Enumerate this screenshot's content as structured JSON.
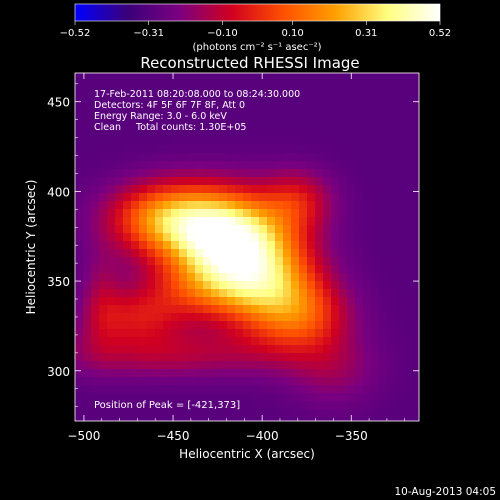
{
  "chart_data": {
    "type": "heatmap",
    "title": "Reconstructed RHESSI Image",
    "xlabel": "Heliocentric X (arcsec)",
    "ylabel": "Heliocentric Y (arcsec)",
    "xlim": [
      -505,
      -312
    ],
    "ylim": [
      272,
      466
    ],
    "x_ticks": [
      -500,
      -450,
      -400,
      -350
    ],
    "x_tick_labels": [
      "−500",
      "−450",
      "−400",
      "−350"
    ],
    "y_ticks": [
      300,
      350,
      400,
      450
    ],
    "y_tick_labels": [
      "300",
      "350",
      "400",
      "450"
    ],
    "colorbar": {
      "range": [
        -0.52,
        0.52
      ],
      "ticks": [
        -0.52,
        -0.31,
        -0.1,
        0.1,
        0.31,
        0.52
      ],
      "tick_labels": [
        "−0.52",
        "−0.31",
        "−0.10",
        "0.10",
        "0.31",
        "0.52"
      ],
      "units_label": "(photons cm⁻² s⁻¹ asec⁻²)",
      "stops": [
        "#0000ff",
        "#3a007a",
        "#7a0080",
        "#d00020",
        "#ff5000",
        "#ffa000",
        "#ffff80",
        "#ffffff"
      ]
    },
    "info_lines": [
      "17-Feb-2011 08:20:08.000 to 08:24:30.000",
      "Detectors: 4F 5F 6F 7F 8F, Att 0",
      "Energy Range: 3.0 - 6.0 keV",
      "Clean     Total counts: 1.30E+05"
    ],
    "peak_text": "Position of Peak = [-421,373]",
    "peak": {
      "x": -421,
      "y": 373,
      "value": 0.52
    },
    "background_level": -0.3,
    "components": [
      {
        "x": -421,
        "y": 373,
        "sx": 22,
        "sy": 18,
        "amp": 0.75
      },
      {
        "x": -455,
        "y": 385,
        "sx": 22,
        "sy": 14,
        "amp": 0.45
      },
      {
        "x": -430,
        "y": 345,
        "sx": 28,
        "sy": 12,
        "amp": 0.25
      },
      {
        "x": -395,
        "y": 350,
        "sx": 20,
        "sy": 22,
        "amp": 0.4
      },
      {
        "x": -375,
        "y": 330,
        "sx": 18,
        "sy": 14,
        "amp": 0.25
      },
      {
        "x": -470,
        "y": 330,
        "sx": 18,
        "sy": 10,
        "amp": 0.2
      },
      {
        "x": -455,
        "y": 310,
        "sx": 45,
        "sy": 10,
        "amp": 0.18
      },
      {
        "x": -380,
        "y": 395,
        "sx": 14,
        "sy": 12,
        "amp": 0.22
      },
      {
        "x": -490,
        "y": 340,
        "sx": 8,
        "sy": 20,
        "amp": 0.12
      },
      {
        "x": -360,
        "y": 300,
        "sx": 18,
        "sy": 14,
        "amp": 0.12
      }
    ]
  },
  "footer_timestamp": "10-Aug-2013 04:05"
}
